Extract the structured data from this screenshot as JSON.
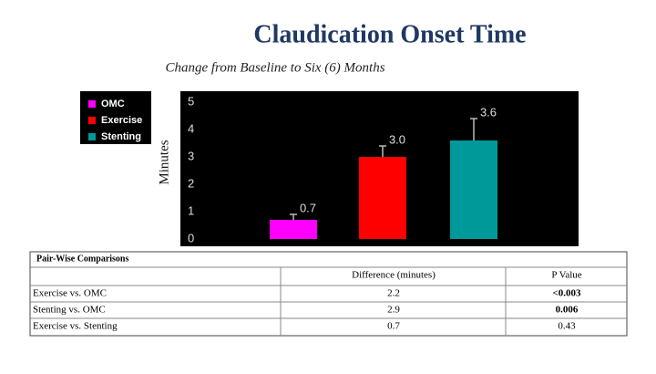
{
  "chart_data": {
    "type": "bar",
    "title": "Claudication Onset Time",
    "subtitle": "Change from Baseline to Six (6) Months",
    "y_label": "Minutes",
    "categories": [
      "OMC",
      "Exercise",
      "Stenting"
    ],
    "values": [
      0.7,
      3.0,
      3.6
    ],
    "value_labels": [
      "0.7",
      "3.0",
      "3.6"
    ],
    "errors": [
      0.2,
      0.4,
      0.8
    ],
    "colors": [
      "#ff00ff",
      "#ff0000",
      "#009999"
    ],
    "ylim": [
      0,
      5
    ],
    "yticks": [
      0,
      1,
      2,
      3,
      4,
      5
    ]
  },
  "table": {
    "title": "Pair-Wise Comparisons",
    "columns": [
      "Difference (minutes)",
      "P Value"
    ],
    "rows": [
      [
        "Exercise vs. OMC",
        "2.2",
        "<0.003"
      ],
      [
        "Stenting vs. OMC",
        "2.9",
        "0.006"
      ],
      [
        "Exercise vs. Stenting",
        "0.7",
        "0.43"
      ]
    ],
    "bold_cells": [
      [
        0,
        2
      ],
      [
        1,
        2
      ]
    ]
  }
}
